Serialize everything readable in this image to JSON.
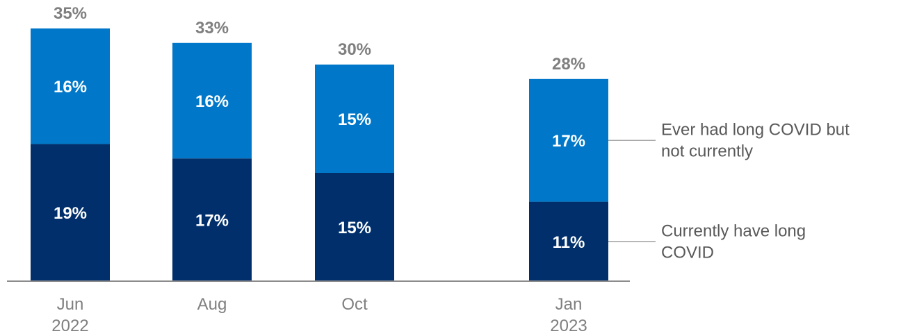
{
  "chart_data": {
    "type": "bar",
    "stacked": true,
    "categories": [
      [
        "Jun",
        "2022"
      ],
      [
        "Aug"
      ],
      [
        "Oct"
      ],
      [
        "Jan",
        "2023"
      ]
    ],
    "series": [
      {
        "name": [
          "Currently have long",
          "COVID"
        ],
        "color": "#002f6c",
        "values": [
          19,
          17,
          15,
          11
        ]
      },
      {
        "name": [
          "Ever had long COVID but",
          "not currently"
        ],
        "color": "#0077c8",
        "values": [
          16,
          16,
          15,
          17
        ]
      }
    ],
    "totals": [
      35,
      33,
      30,
      28
    ],
    "value_suffix": "%",
    "ylim": [
      0,
      35
    ],
    "legend_position": "right",
    "grid": false
  }
}
